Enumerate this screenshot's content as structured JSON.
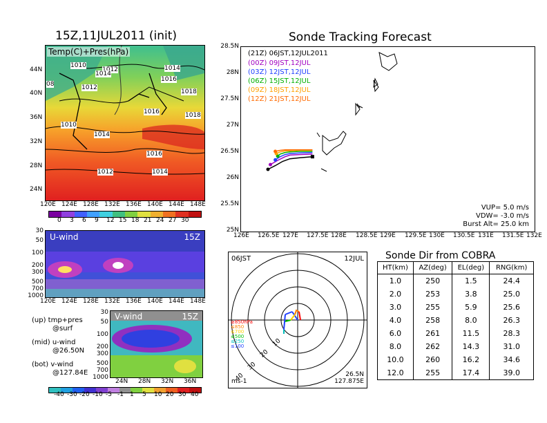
{
  "map_panel": {
    "title": "15Z,11JUL2011 (init)",
    "label": "Temp(C)+Pres(hPa)",
    "lat_ticks": [
      "44N",
      "40N",
      "36N",
      "32N",
      "28N",
      "24N"
    ],
    "lon_ticks": [
      "120E",
      "124E",
      "128E",
      "132E",
      "136E",
      "140E",
      "144E",
      "148E"
    ],
    "pressure_labels": [
      "1010",
      "1012",
      "1014",
      "1012",
      "1014",
      "1016",
      "1018",
      "1016",
      "1018",
      "1010",
      "1014",
      "1016",
      "1012",
      "1014",
      "08"
    ],
    "colorbar_ticks": [
      "0",
      "3",
      "6",
      "9",
      "12",
      "15",
      "18",
      "21",
      "24",
      "27",
      "30"
    ]
  },
  "uwind_panel": {
    "label": "U-wind",
    "time": "15Z",
    "y_ticks": [
      "30",
      "50",
      "100",
      "200",
      "300",
      "500",
      "700",
      "1000"
    ],
    "x_ticks": [
      "120E",
      "124E",
      "128E",
      "132E",
      "136E",
      "140E",
      "144E",
      "148E"
    ]
  },
  "vwind_panel": {
    "label": "V-wind",
    "time": "15Z",
    "y_ticks": [
      "30",
      "50",
      "100",
      "200",
      "300",
      "500",
      "700",
      "1000"
    ],
    "x_ticks": [
      "24N",
      "28N",
      "32N",
      "36N"
    ],
    "colorbar_ticks": [
      "-40",
      "-30",
      "-20",
      "-10",
      "-5",
      "-1",
      "1",
      "5",
      "10",
      "20",
      "30",
      "40"
    ]
  },
  "legend_notes": {
    "up": "(up) tmp+pres",
    "up2": "@surf",
    "mid": "(mid) u-wind",
    "mid2": "@26.50N",
    "bot": "(bot) v-wind",
    "bot2": "@127.84E"
  },
  "chart_data": [
    {
      "type": "line",
      "title": "Sonde Tracking Forecast",
      "x_ticks": [
        "126E",
        "126.5E",
        "127E",
        "127.5E",
        "128E",
        "128.5E",
        "129E",
        "129.5E",
        "130E",
        "130.5E",
        "131E",
        "131.5E",
        "132E"
      ],
      "y_ticks": [
        "28.5N",
        "28N",
        "27.5N",
        "27N",
        "26.5N",
        "26N",
        "25.5N",
        "25N"
      ],
      "xlim": [
        126,
        132
      ],
      "ylim": [
        25,
        28.5
      ],
      "legend": [
        {
          "code": "(21Z)",
          "label": "06JST,12JUL2011",
          "color": "#000000"
        },
        {
          "code": "(00Z)",
          "label": "09JST,12JUL",
          "color": "#a000c0"
        },
        {
          "code": "(03Z)",
          "label": "12JST,12JUL",
          "color": "#2040ff"
        },
        {
          "code": "(06Z)",
          "label": "15JST,12JUL",
          "color": "#00b000"
        },
        {
          "code": "(09Z)",
          "label": "18JST,12JUL",
          "color": "#ffa000"
        },
        {
          "code": "(12Z)",
          "label": "21JST,12JUL",
          "color": "#ff6a00"
        }
      ],
      "series": [
        {
          "name": "(21Z) 06JST,12JUL2011",
          "color": "#000000",
          "x": [
            127.46,
            127.2,
            127.0,
            126.85,
            126.7,
            126.55
          ],
          "y": [
            26.42,
            26.4,
            26.38,
            26.33,
            26.25,
            26.18
          ]
        },
        {
          "name": "(00Z) 09JST,12JUL",
          "color": "#a000c0",
          "x": [
            127.46,
            127.2,
            127.0,
            126.9,
            126.75,
            126.6
          ],
          "y": [
            26.47,
            26.46,
            26.45,
            26.42,
            26.35,
            26.27
          ]
        },
        {
          "name": "(03Z) 12JST,12JUL",
          "color": "#2040ff",
          "x": [
            127.46,
            127.2,
            127.0,
            126.9,
            126.8,
            126.7
          ],
          "y": [
            26.5,
            26.49,
            26.48,
            26.46,
            26.42,
            26.36
          ]
        },
        {
          "name": "(06Z) 15JST,12JUL",
          "color": "#00b000",
          "x": [
            127.46,
            127.2,
            127.0,
            126.9,
            126.8,
            126.75
          ],
          "y": [
            26.52,
            26.52,
            26.51,
            26.5,
            26.47,
            26.43
          ]
        },
        {
          "name": "(09Z) 18JST,12JUL",
          "color": "#ffa000",
          "x": [
            127.46,
            127.2,
            127.0,
            126.9,
            126.8,
            126.72
          ],
          "y": [
            26.54,
            26.54,
            26.53,
            26.53,
            26.51,
            26.48
          ]
        },
        {
          "name": "(12Z) 21JST,12JUL",
          "color": "#ff6a00",
          "x": [
            127.46,
            127.2,
            127.0,
            126.9,
            126.8,
            126.7
          ],
          "y": [
            26.55,
            26.55,
            26.55,
            26.55,
            26.54,
            26.52
          ]
        }
      ],
      "annotations": {
        "vup": "VUP=  5.0  m/s",
        "vdw": "VDW= -3.0  m/s",
        "burst": "Burst Alt= 25.0  km"
      }
    },
    {
      "type": "polar",
      "header_left": "06JST",
      "header_right": "12JUL",
      "footer_left": "ms-1",
      "footer_right1": "26.5N",
      "footer_right2": "127.875E",
      "ring_labels": [
        "10",
        "20",
        "30",
        "40"
      ],
      "height_legend": [
        {
          "label": "≥850hPa",
          "color": "#ff0000"
        },
        {
          "label": "≤850",
          "color": "#ff8000"
        },
        {
          "label": "≤700",
          "color": "#ffd000"
        },
        {
          "label": "≤500",
          "color": "#00c000"
        },
        {
          "label": "≤250",
          "color": "#00c0c0"
        },
        {
          "label": "≤100",
          "color": "#2040ff"
        }
      ]
    },
    {
      "type": "table",
      "title": "Sonde Dir from COBRA",
      "columns": [
        "HT(km)",
        "AZ(deg)",
        "EL(deg)",
        "RNG(km)"
      ],
      "rows": [
        [
          "1.0",
          "250",
          "1.5",
          "24.4"
        ],
        [
          "2.0",
          "253",
          "3.8",
          "25.0"
        ],
        [
          "3.0",
          "255",
          "5.9",
          "25.6"
        ],
        [
          "4.0",
          "258",
          "8.0",
          "26.3"
        ],
        [
          "6.0",
          "261",
          "11.5",
          "28.3"
        ],
        [
          "8.0",
          "262",
          "14.3",
          "31.0"
        ],
        [
          "10.0",
          "260",
          "16.2",
          "34.6"
        ],
        [
          "12.0",
          "255",
          "17.4",
          "39.0"
        ]
      ]
    }
  ]
}
